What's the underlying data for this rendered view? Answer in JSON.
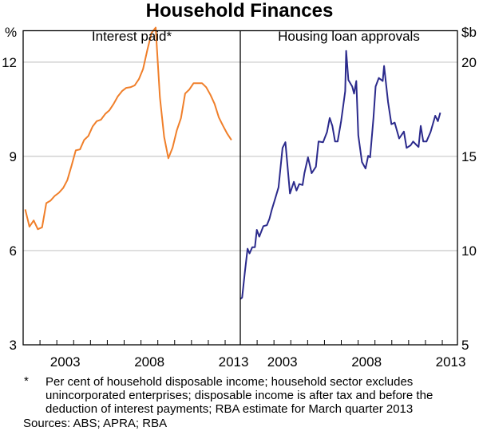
{
  "chart_data": {
    "title": "Household Finances",
    "left_unit": "%",
    "right_unit": "$b",
    "footnote_marker": "*",
    "footnote_lines": [
      "Per cent of household disposable income; household sector excludes",
      "unincorporated enterprises; disposable income is after tax and before the",
      "deduction of interest payments; RBA estimate for March quarter 2013"
    ],
    "sources": "Sources: ABS; APRA; RBA",
    "grid": true,
    "panels": [
      {
        "type": "line",
        "title": "Interest paid*",
        "xlim": [
          2001,
          2013.9
        ],
        "ylim": [
          3,
          13
        ],
        "yticks": [
          3,
          6,
          9,
          12
        ],
        "xtick_labels": [
          "2003",
          "2008",
          "2013"
        ],
        "color": "#f07f2a",
        "series": [
          {
            "start": "2001-Q1",
            "frequency": "quarterly",
            "values": [
              7.31,
              6.76,
              6.96,
              6.68,
              6.74,
              7.51,
              7.59,
              7.74,
              7.84,
              7.99,
              8.24,
              8.7,
              9.19,
              9.22,
              9.52,
              9.65,
              9.95,
              10.12,
              10.17,
              10.35,
              10.47,
              10.67,
              10.91,
              11.08,
              11.18,
              11.2,
              11.26,
              11.46,
              11.78,
              12.38,
              12.93,
              13.1,
              10.88,
              9.62,
              8.94,
              9.27,
              9.82,
              10.22,
              11.0,
              11.13,
              11.33,
              11.33,
              11.33,
              11.2,
              10.96,
              10.67,
              10.24,
              9.97,
              9.72,
              9.52
            ]
          }
        ]
      },
      {
        "type": "line",
        "title": "Housing loan approvals",
        "xlim": [
          2001,
          2013.9
        ],
        "ylim": [
          5,
          21.67
        ],
        "yticks": [
          5,
          10,
          15,
          20
        ],
        "xtick_labels": [
          "2003",
          "2008",
          "2013"
        ],
        "color": "#2b2a8c",
        "series": [
          {
            "x": [
              2001.0,
              2001.11,
              2001.27,
              2001.43,
              2001.55,
              2001.71,
              2001.87,
              2001.98,
              2002.13,
              2002.37,
              2002.58,
              2002.73,
              2002.88,
              2003.05,
              2003.27,
              2003.51,
              2003.68,
              2003.95,
              2004.18,
              2004.34,
              2004.5,
              2004.7,
              2004.81,
              2005.02,
              2005.24,
              2005.49,
              2005.65,
              2005.92,
              2006.15,
              2006.31,
              2006.47,
              2006.63,
              2006.78,
              2006.99,
              2007.23,
              2007.29,
              2007.42,
              2007.65,
              2007.76,
              2007.89,
              2008.01,
              2008.23,
              2008.44,
              2008.6,
              2008.71,
              2008.91,
              2009.04,
              2009.23,
              2009.46,
              2009.54,
              2009.78,
              2009.98,
              2010.17,
              2010.44,
              2010.72,
              2010.88,
              2011.12,
              2011.27,
              2011.48,
              2011.59,
              2011.72,
              2011.87,
              2012.06,
              2012.3,
              2012.58,
              2012.74,
              2012.88
            ],
            "y": [
              7.43,
              7.51,
              8.85,
              10.1,
              9.85,
              10.18,
              10.18,
              11.1,
              10.74,
              11.3,
              11.35,
              11.69,
              12.19,
              12.69,
              13.36,
              15.45,
              15.75,
              13.03,
              13.65,
              13.19,
              13.53,
              13.48,
              14.11,
              14.95,
              14.11,
              14.45,
              15.79,
              15.75,
              16.29,
              17.04,
              16.62,
              15.79,
              15.79,
              16.87,
              18.46,
              20.6,
              19.05,
              18.71,
              18.33,
              19.0,
              16.12,
              14.7,
              14.36,
              15.03,
              14.95,
              17.04,
              18.71,
              19.16,
              19.0,
              19.8,
              17.88,
              16.71,
              16.79,
              15.95,
              16.32,
              15.45,
              15.59,
              15.79,
              15.59,
              15.5,
              16.62,
              15.79,
              15.79,
              16.29,
              17.16,
              16.87,
              17.32
            ]
          }
        ]
      }
    ]
  }
}
